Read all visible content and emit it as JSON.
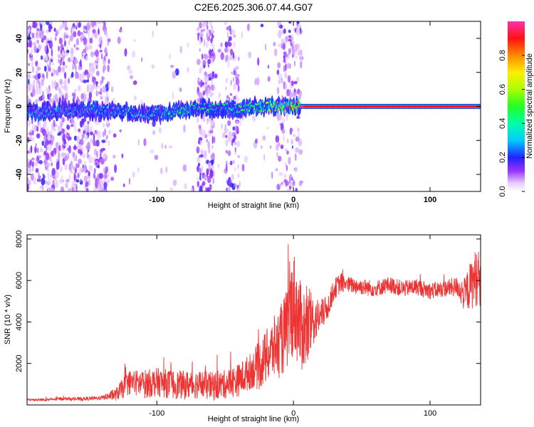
{
  "title": "C2E6.2025.306.07.44.G07",
  "chart_data": [
    {
      "type": "heatmap",
      "xlabel": "Height of straight line (km)",
      "ylabel": "Frequency (Hz)",
      "xlim": [
        -195,
        137
      ],
      "ylim": [
        -50,
        50
      ],
      "xticks": [
        -100,
        0,
        100
      ],
      "xtick_labels": [
        "-100",
        "0",
        "100"
      ],
      "yticks": [
        -40,
        -20,
        0,
        20,
        40
      ],
      "ytick_labels": [
        "-40",
        "-20",
        "0",
        "20",
        "40"
      ],
      "colorbar": {
        "label": "Normalized spectral amplitude",
        "range": [
          0,
          1
        ],
        "ticks": [
          0.0,
          0.2,
          0.4,
          0.6,
          0.8
        ],
        "tick_labels": [
          "0.0",
          "0.2",
          "0.4",
          "0.6",
          "0.8"
        ]
      },
      "trace": {
        "x": [
          -195,
          -175,
          -155,
          -140,
          -125,
          -110,
          -95,
          -80,
          -65,
          -50,
          -40,
          -30,
          -20,
          -10,
          0,
          10,
          30,
          60,
          90,
          120,
          137
        ],
        "frequency": [
          -3,
          -3,
          -2,
          -3,
          -3,
          -4,
          -4,
          -2,
          -1,
          -1,
          -2,
          0,
          0,
          0,
          0,
          0,
          0,
          0,
          0,
          0,
          0
        ],
        "amplitude": [
          0.3,
          0.35,
          0.3,
          0.35,
          0.35,
          0.35,
          0.4,
          0.45,
          0.45,
          0.4,
          0.45,
          0.5,
          0.6,
          0.7,
          0.9,
          0.95,
          0.95,
          0.95,
          0.95,
          0.95,
          0.95
        ]
      },
      "grid": false
    },
    {
      "type": "line",
      "xlabel": "Height of straight line (km)",
      "ylabel": "SNR (10 * v/v)",
      "xlim": [
        -195,
        137
      ],
      "ylim": [
        0,
        8200
      ],
      "xticks": [
        -100,
        0,
        100
      ],
      "xtick_labels": [
        "-100",
        "0",
        "100"
      ],
      "yticks": [
        2000,
        4000,
        6000,
        8000
      ],
      "ytick_labels": [
        "2000",
        "4000",
        "6000",
        "8000"
      ],
      "series": [
        {
          "color": "#ee3333",
          "x": [
            -195,
            -180,
            -170,
            -160,
            -150,
            -140,
            -130,
            -125,
            -120,
            -110,
            -100,
            -90,
            -80,
            -70,
            -60,
            -50,
            -40,
            -30,
            -25,
            -20,
            -15,
            -10,
            -5,
            0,
            5,
            10,
            15,
            20,
            25,
            30,
            35,
            40,
            50,
            60,
            70,
            80,
            90,
            100,
            110,
            120,
            125,
            130,
            135,
            137
          ],
          "y": [
            250,
            250,
            300,
            280,
            300,
            350,
            500,
            800,
            1100,
            1000,
            1100,
            1000,
            950,
            1000,
            900,
            1000,
            1200,
            1700,
            1900,
            2300,
            2700,
            3000,
            3600,
            5000,
            3800,
            3600,
            4100,
            4300,
            4700,
            5600,
            5900,
            5800,
            5700,
            5600,
            5800,
            5600,
            5700,
            5500,
            5600,
            5700,
            5300,
            5800,
            6300,
            5500
          ],
          "noise": [
            60,
            60,
            80,
            80,
            90,
            100,
            300,
            500,
            600,
            700,
            700,
            700,
            700,
            700,
            700,
            700,
            800,
            900,
            1200,
            1300,
            1500,
            1700,
            2000,
            2600,
            2200,
            2000,
            1200,
            800,
            600,
            500,
            500,
            400,
            400,
            400,
            400,
            400,
            400,
            400,
            400,
            500,
            800,
            1200,
            1500,
            1200
          ]
        }
      ],
      "grid": false
    }
  ],
  "colors": {
    "snr_line": "#ee3333",
    "frame": "#000000"
  }
}
